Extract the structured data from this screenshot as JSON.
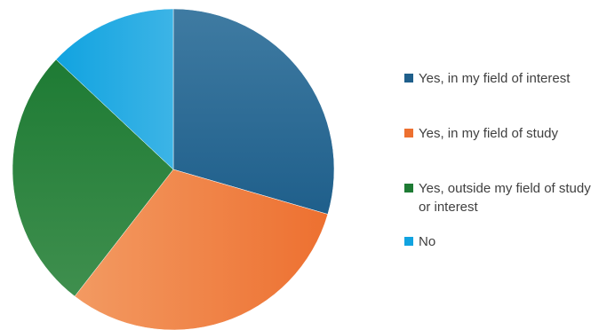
{
  "chart_data": {
    "type": "pie",
    "title": "",
    "start_angle_deg": 0,
    "direction": "clockwise",
    "legend_position": "right",
    "categories": [
      "Yes, in my field of interest",
      "Yes, in my field of study",
      "Yes, outside my field of study or interest",
      "No"
    ],
    "values": [
      29.5,
      31,
      26.5,
      13
    ],
    "colors": [
      "#1f5f8b",
      "#ed7030",
      "#1e7b34",
      "#11a3e0"
    ],
    "colors_light": [
      "#3f7ba2",
      "#f39a62",
      "#3f8f4e",
      "#3cb4e6"
    ],
    "gradient_angles_deg": [
      90,
      0,
      270,
      180
    ]
  }
}
